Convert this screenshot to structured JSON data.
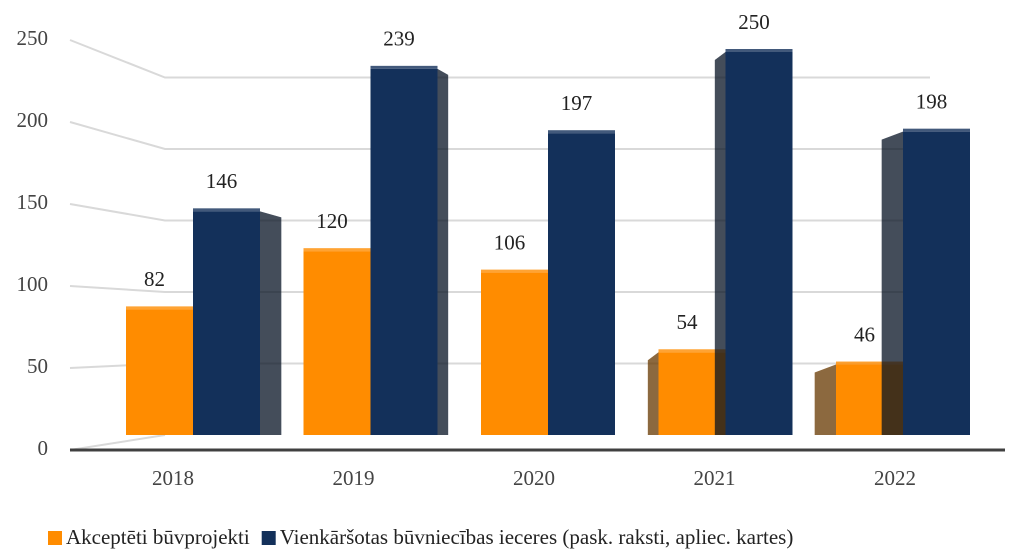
{
  "chart_data": {
    "type": "bar",
    "categories": [
      "2018",
      "2019",
      "2020",
      "2021",
      "2022"
    ],
    "series": [
      {
        "name": "Akceptēti būvprojekti",
        "color": "#ff8c00",
        "values": [
          82,
          120,
          106,
          54,
          46
        ]
      },
      {
        "name": "Vienkāršotas būvniecības ieceres (pask. raksti, apliec. kartes)",
        "color": "#13305a",
        "values": [
          146,
          239,
          197,
          250,
          198
        ]
      }
    ],
    "ylim": [
      0,
      250
    ],
    "yticks": [
      0,
      50,
      100,
      150,
      200,
      250
    ],
    "grid": true,
    "legend": "bottom"
  }
}
